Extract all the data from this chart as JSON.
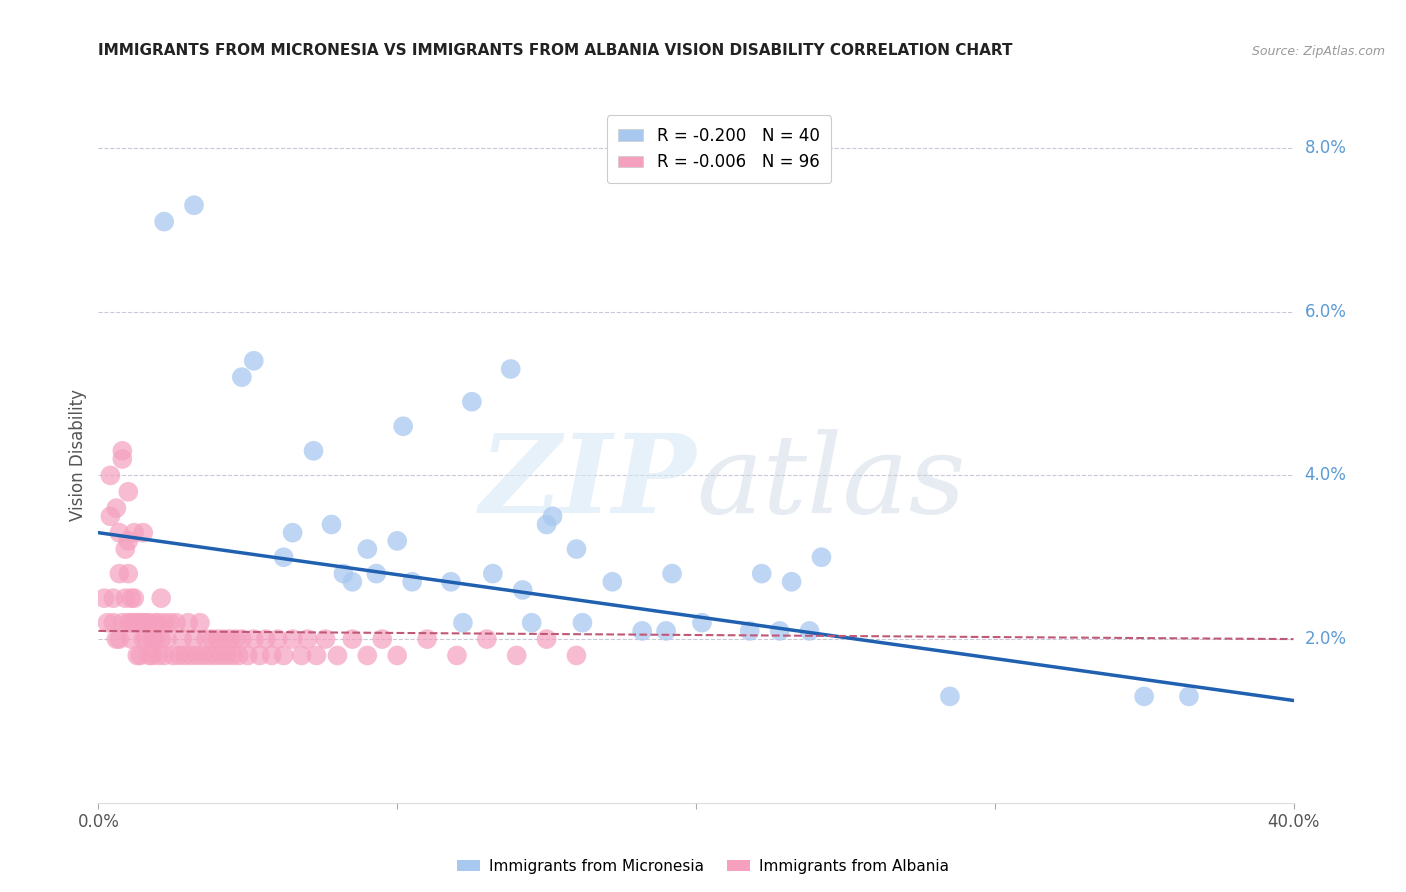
{
  "title": "IMMIGRANTS FROM MICRONESIA VS IMMIGRANTS FROM ALBANIA VISION DISABILITY CORRELATION CHART",
  "source": "Source: ZipAtlas.com",
  "ylabel": "Vision Disability",
  "xlim": [
    0.0,
    0.4
  ],
  "ylim": [
    0.0,
    0.085
  ],
  "micronesia_color": "#a8c8f0",
  "albania_color": "#f5a0be",
  "micronesia_R": -0.2,
  "micronesia_N": 40,
  "albania_R": -0.006,
  "albania_N": 96,
  "legend_label_micronesia": "Immigrants from Micronesia",
  "legend_label_albania": "Immigrants from Albania",
  "trendline_micronesia_color": "#2060b0",
  "trendline_albania_color": "#c05878",
  "mic_trend_start_y": 0.033,
  "mic_trend_end_y": 0.0125,
  "alb_trend_y": 0.021,
  "micronesia_x": [
    0.022,
    0.032,
    0.048,
    0.052,
    0.062,
    0.065,
    0.072,
    0.078,
    0.082,
    0.085,
    0.09,
    0.093,
    0.1,
    0.102,
    0.105,
    0.118,
    0.122,
    0.125,
    0.132,
    0.138,
    0.142,
    0.145,
    0.15,
    0.152,
    0.16,
    0.162,
    0.172,
    0.182,
    0.19,
    0.192,
    0.202,
    0.218,
    0.222,
    0.228,
    0.232,
    0.238,
    0.242,
    0.285,
    0.35,
    0.365
  ],
  "micronesia_y": [
    0.071,
    0.073,
    0.052,
    0.054,
    0.03,
    0.033,
    0.043,
    0.034,
    0.028,
    0.027,
    0.031,
    0.028,
    0.032,
    0.046,
    0.027,
    0.027,
    0.022,
    0.049,
    0.028,
    0.053,
    0.026,
    0.022,
    0.034,
    0.035,
    0.031,
    0.022,
    0.027,
    0.021,
    0.021,
    0.028,
    0.022,
    0.021,
    0.028,
    0.021,
    0.027,
    0.021,
    0.03,
    0.013,
    0.013,
    0.013
  ],
  "albania_x": [
    0.002,
    0.003,
    0.004,
    0.004,
    0.005,
    0.005,
    0.006,
    0.006,
    0.007,
    0.007,
    0.007,
    0.008,
    0.008,
    0.008,
    0.009,
    0.009,
    0.01,
    0.01,
    0.01,
    0.01,
    0.011,
    0.011,
    0.011,
    0.012,
    0.012,
    0.012,
    0.013,
    0.013,
    0.014,
    0.014,
    0.015,
    0.015,
    0.015,
    0.016,
    0.016,
    0.017,
    0.017,
    0.018,
    0.018,
    0.019,
    0.019,
    0.02,
    0.02,
    0.021,
    0.021,
    0.022,
    0.022,
    0.023,
    0.024,
    0.025,
    0.026,
    0.027,
    0.028,
    0.029,
    0.03,
    0.031,
    0.032,
    0.033,
    0.034,
    0.035,
    0.036,
    0.037,
    0.038,
    0.039,
    0.04,
    0.041,
    0.042,
    0.043,
    0.044,
    0.045,
    0.046,
    0.047,
    0.048,
    0.05,
    0.052,
    0.054,
    0.056,
    0.058,
    0.06,
    0.062,
    0.065,
    0.068,
    0.07,
    0.073,
    0.076,
    0.08,
    0.085,
    0.09,
    0.095,
    0.1,
    0.11,
    0.12,
    0.13,
    0.14,
    0.15,
    0.16
  ],
  "albania_y": [
    0.025,
    0.022,
    0.035,
    0.04,
    0.025,
    0.022,
    0.036,
    0.02,
    0.033,
    0.028,
    0.02,
    0.043,
    0.042,
    0.022,
    0.031,
    0.025,
    0.038,
    0.032,
    0.028,
    0.022,
    0.025,
    0.022,
    0.02,
    0.033,
    0.025,
    0.022,
    0.022,
    0.018,
    0.022,
    0.018,
    0.033,
    0.022,
    0.02,
    0.022,
    0.02,
    0.022,
    0.018,
    0.02,
    0.018,
    0.022,
    0.02,
    0.022,
    0.018,
    0.025,
    0.02,
    0.022,
    0.018,
    0.02,
    0.022,
    0.018,
    0.022,
    0.018,
    0.02,
    0.018,
    0.022,
    0.018,
    0.02,
    0.018,
    0.022,
    0.018,
    0.02,
    0.018,
    0.02,
    0.018,
    0.02,
    0.018,
    0.02,
    0.018,
    0.02,
    0.018,
    0.02,
    0.018,
    0.02,
    0.018,
    0.02,
    0.018,
    0.02,
    0.018,
    0.02,
    0.018,
    0.02,
    0.018,
    0.02,
    0.018,
    0.02,
    0.018,
    0.02,
    0.018,
    0.02,
    0.018,
    0.02,
    0.018,
    0.02,
    0.018,
    0.02,
    0.018
  ]
}
